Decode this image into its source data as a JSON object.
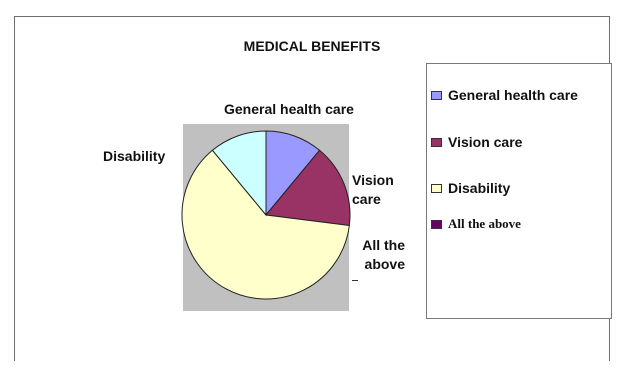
{
  "chart_data": {
    "type": "pie",
    "title": "MEDICAL BENEFITS",
    "categories": [
      "General health care",
      "Vision care",
      "Disability",
      "All the above"
    ],
    "slice_labels": [
      "General health care",
      "Vision care",
      "Disability",
      "All the above"
    ],
    "values": [
      11,
      16,
      62,
      11
    ],
    "colors": [
      "#9999ff",
      "#993366",
      "#ffffcc",
      "#ccffff"
    ],
    "legend": {
      "position": "right",
      "entries": [
        {
          "label": "General health care",
          "color": "#9999ff"
        },
        {
          "label": "Vision care",
          "color": "#993366"
        },
        {
          "label": "Disability",
          "color": "#ffffcc"
        },
        {
          "label": "All the above",
          "color": "#660066"
        }
      ]
    },
    "plot_area_color": "#c0c0c0"
  }
}
